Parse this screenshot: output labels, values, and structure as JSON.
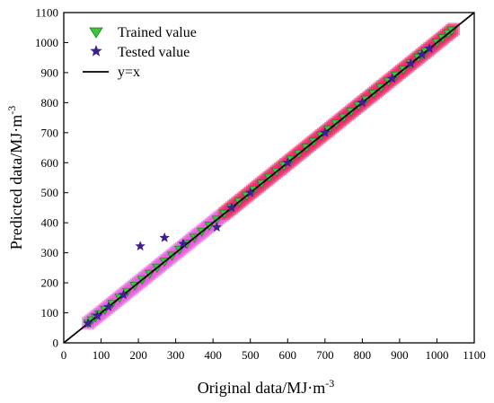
{
  "chart_data": {
    "type": "scatter",
    "xlabel": "Original data/MJ·m",
    "xlabel_sup": "-3",
    "ylabel": "Predicted data/MJ·m",
    "ylabel_sup": "-3",
    "xlim": [
      0,
      1100
    ],
    "ylim": [
      0,
      1100
    ],
    "xticks": [
      0,
      100,
      200,
      300,
      400,
      500,
      600,
      700,
      800,
      900,
      1000,
      1100
    ],
    "yticks": [
      0,
      100,
      200,
      300,
      400,
      500,
      600,
      700,
      800,
      900,
      1000,
      1100
    ],
    "grid": false,
    "legend_position": "top-left",
    "series": [
      {
        "name": "Trained value",
        "marker": "triangle-down",
        "color": "#3cc43c",
        "x": [
          65,
          75,
          85,
          95,
          110,
          130,
          150,
          170,
          190,
          210,
          230,
          250,
          270,
          290,
          310,
          330,
          350,
          370,
          390,
          410,
          430,
          450,
          470,
          490,
          510,
          530,
          550,
          570,
          590,
          610,
          630,
          650,
          670,
          690,
          710,
          730,
          750,
          770,
          790,
          810,
          830,
          850,
          870,
          890,
          910,
          930,
          950,
          960,
          970,
          1000,
          1015,
          1030,
          1040
        ],
        "y": [
          65,
          75,
          85,
          95,
          110,
          130,
          150,
          170,
          190,
          210,
          230,
          250,
          270,
          290,
          310,
          330,
          350,
          370,
          390,
          410,
          430,
          450,
          470,
          490,
          510,
          530,
          550,
          570,
          590,
          610,
          630,
          650,
          670,
          690,
          710,
          730,
          750,
          770,
          790,
          810,
          830,
          850,
          870,
          890,
          910,
          930,
          950,
          960,
          970,
          1000,
          1015,
          1030,
          1040
        ]
      },
      {
        "name": "Tested value",
        "marker": "star",
        "color": "#3d1f8f",
        "x": [
          65,
          90,
          120,
          160,
          205,
          270,
          320,
          410,
          450,
          500,
          600,
          700,
          800,
          880,
          930,
          960,
          980
        ],
        "y": [
          65,
          90,
          120,
          160,
          322,
          350,
          330,
          385,
          450,
          500,
          600,
          700,
          800,
          880,
          930,
          960,
          980
        ]
      },
      {
        "name": "y=x",
        "type": "line",
        "color": "#000000",
        "x": [
          0,
          1100
        ],
        "y": [
          0,
          1100
        ]
      }
    ]
  }
}
